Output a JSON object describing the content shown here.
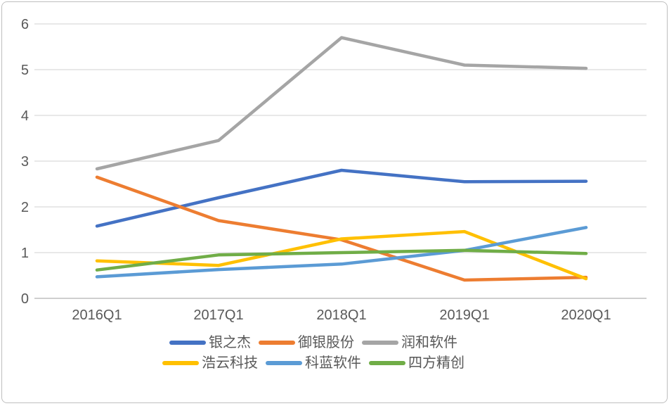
{
  "chart_data": {
    "type": "line",
    "categories": [
      "2016Q1",
      "2017Q1",
      "2018Q1",
      "2019Q1",
      "2020Q1"
    ],
    "series": [
      {
        "name": "银之杰",
        "color": "#4472C4",
        "values": [
          1.58,
          2.2,
          2.8,
          2.55,
          2.56
        ]
      },
      {
        "name": "御银股份",
        "color": "#ED7D31",
        "values": [
          2.65,
          1.7,
          1.28,
          0.4,
          0.46
        ]
      },
      {
        "name": "润和软件",
        "color": "#A5A5A5",
        "values": [
          2.83,
          3.45,
          5.7,
          5.1,
          5.03
        ]
      },
      {
        "name": "浩云科技",
        "color": "#FFC000",
        "values": [
          0.82,
          0.72,
          1.3,
          1.46,
          0.43
        ]
      },
      {
        "name": "科蓝软件",
        "color": "#5B9BD5",
        "values": [
          0.47,
          0.63,
          0.75,
          1.05,
          1.55
        ]
      },
      {
        "name": "四方精创",
        "color": "#70AD47",
        "values": [
          0.62,
          0.95,
          1.0,
          1.05,
          0.98
        ]
      }
    ],
    "ytick_labels": [
      "0",
      "1",
      "2",
      "3",
      "4",
      "5",
      "6"
    ],
    "yticks": [
      0,
      1,
      2,
      3,
      4,
      5,
      6
    ],
    "ylim": [
      0,
      6
    ],
    "xlabel": "",
    "ylabel": "",
    "title": "",
    "grid": "horizontal",
    "legend_position": "bottom",
    "legend_items_per_row": 3
  },
  "colors": {
    "gridline": "#D9D9D9",
    "axis_line": "#BFBFBF",
    "tick_text": "#595959",
    "frame_border": "#BFBFBF",
    "background": "#FFFFFF"
  }
}
